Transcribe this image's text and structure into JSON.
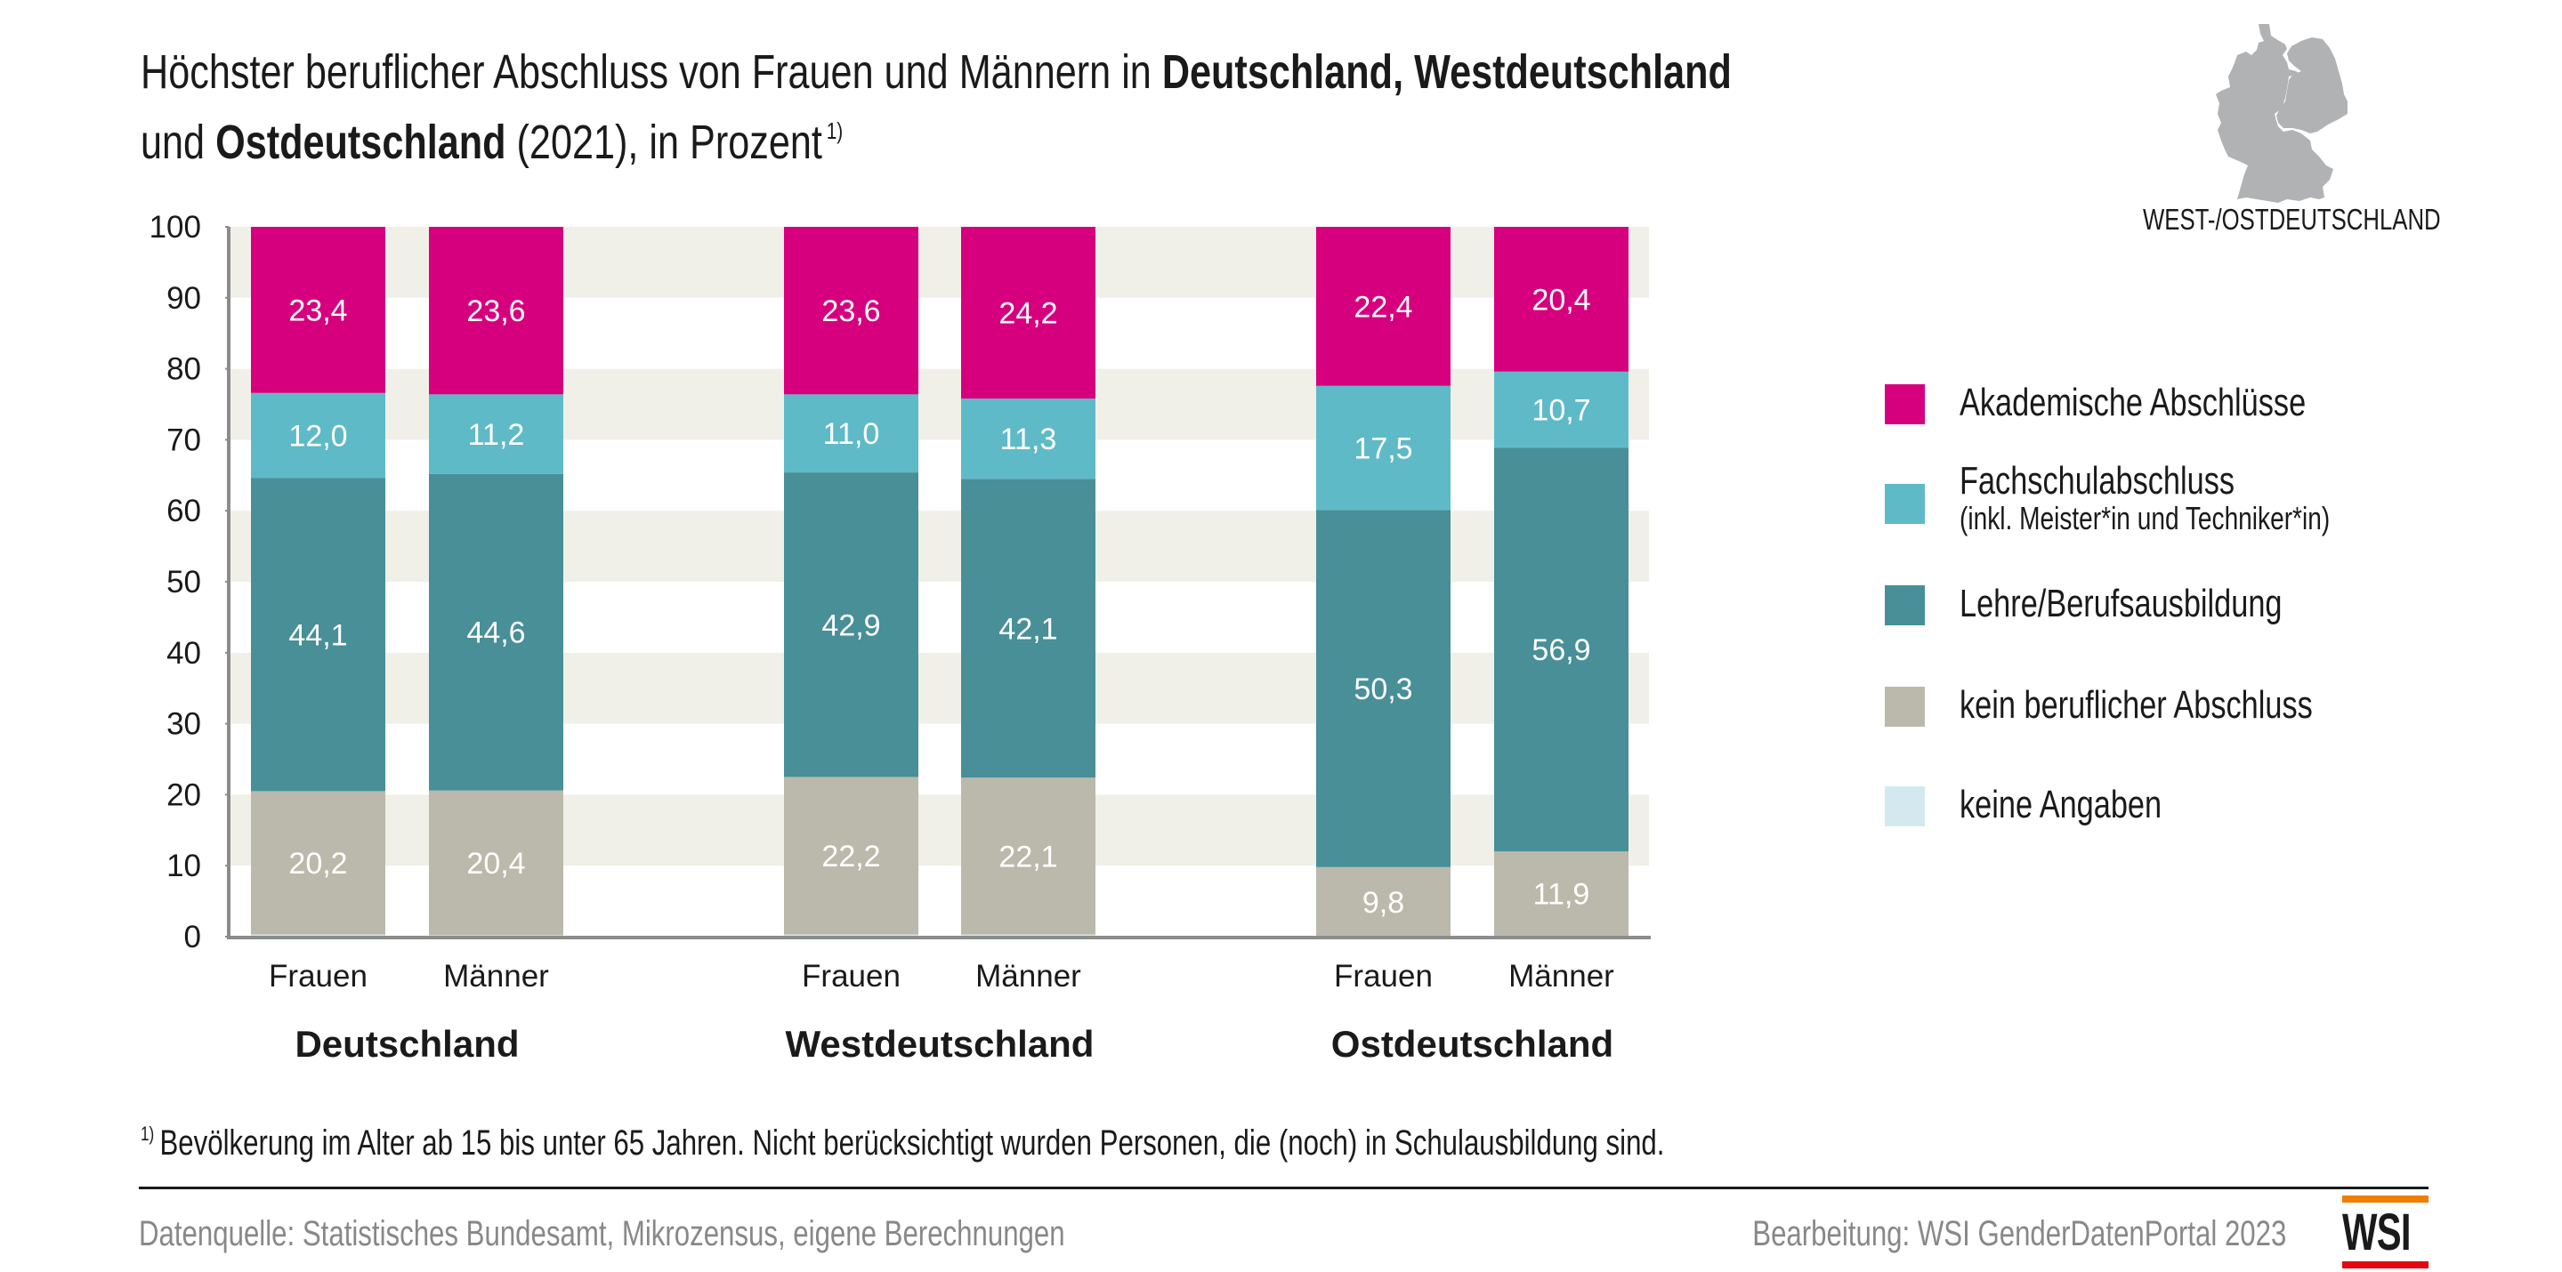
{
  "title": {
    "line1_regular": "Höchster beruflicher Abschluss von Frauen und Männern in ",
    "line1_bold": "Deutschland, Westdeutschland",
    "line2_regular_a": "und ",
    "line2_bold": "Ostdeutschland",
    "line2_regular_b": " (2021), in Prozent",
    "footnote_marker": "1)"
  },
  "map": {
    "icon": "germany-map-icon",
    "label": "WEST-/OSTDEUTSCHLAND",
    "fill_color": "#b1b2b4"
  },
  "chart_data": {
    "type": "bar",
    "stacked": true,
    "title": "Höchster beruflicher Abschluss von Frauen und Männern in Deutschland, Westdeutschland und Ostdeutschland (2021), in Prozent",
    "xlabel": "",
    "ylabel": "",
    "ylim": [
      0,
      100
    ],
    "yticks": [
      0,
      10,
      20,
      30,
      40,
      50,
      60,
      70,
      80,
      90,
      100
    ],
    "grid": "alternating horizontal bands",
    "legend_position": "right",
    "groups": [
      "Deutschland",
      "Westdeutschland",
      "Ostdeutschland"
    ],
    "categories": [
      "Frauen",
      "Männer",
      "Frauen",
      "Männer",
      "Frauen",
      "Männer"
    ],
    "category_group": [
      0,
      0,
      1,
      1,
      2,
      2
    ],
    "series": [
      {
        "name": "keine Angaben",
        "color": "#d3e9ef",
        "values": [
          0.3,
          0.2,
          0.3,
          0.3,
          0.0,
          0.1
        ],
        "labels": [
          "",
          "",
          "",
          "",
          "",
          ""
        ]
      },
      {
        "name": "kein beruflicher Abschluss",
        "color": "#bbb9ab",
        "values": [
          20.2,
          20.4,
          22.2,
          22.1,
          9.8,
          11.9
        ],
        "labels": [
          "20,2",
          "20,4",
          "22,2",
          "22,1",
          "9,8",
          "11,9"
        ]
      },
      {
        "name": "Lehre/Berufsausbildung",
        "color": "#488f98",
        "values": [
          44.1,
          44.6,
          42.9,
          42.1,
          50.3,
          56.9
        ],
        "labels": [
          "44,1",
          "44,6",
          "42,9",
          "42,1",
          "50,3",
          "56,9"
        ]
      },
      {
        "name": "Fachschulabschluss",
        "name_sub": "(inkl. Meister*in und Techniker*in)",
        "color": "#5fbac8",
        "values": [
          12.0,
          11.2,
          11.0,
          11.3,
          17.5,
          10.7
        ],
        "labels": [
          "12,0",
          "11,2",
          "11,0",
          "11,3",
          "17,5",
          "10,7"
        ]
      },
      {
        "name": "Akademische Abschlüsse",
        "color": "#d6007e",
        "values": [
          23.4,
          23.6,
          23.6,
          24.2,
          22.4,
          20.4
        ],
        "labels": [
          "23,4",
          "23,6",
          "23,6",
          "24,2",
          "22,4",
          "20,4"
        ]
      }
    ],
    "band_color": "#f1f0e8",
    "axis_color": "#8c8c8c"
  },
  "legend": [
    {
      "label": "Akademische Abschlüsse",
      "sub": "",
      "color": "#d6007e"
    },
    {
      "label": "Fachschulabschluss",
      "sub": "(inkl. Meister*in und Techniker*in)",
      "color": "#5fbac8"
    },
    {
      "label": "Lehre/Berufsausbildung",
      "sub": "",
      "color": "#488f98"
    },
    {
      "label": "kein beruflicher Abschluss",
      "sub": "",
      "color": "#bbb9ab"
    },
    {
      "label": "keine Angaben",
      "sub": "",
      "color": "#d3e9ef"
    }
  ],
  "footnote": {
    "marker": "1)",
    "text": "Bevölkerung im Alter ab 15 bis unter 65 Jahren. Nicht berücksichtigt wurden Personen, die (noch) in Schulausbildung sind."
  },
  "source": "Datenquelle: Statistisches Bundesamt, Mikrozensus, eigene Berechnungen",
  "credit": "Bearbeitung: WSI GenderDatenPortal 2023",
  "logo": {
    "text": "WSI",
    "top_color": "#ee7f00",
    "bottom_color": "#e30613"
  }
}
